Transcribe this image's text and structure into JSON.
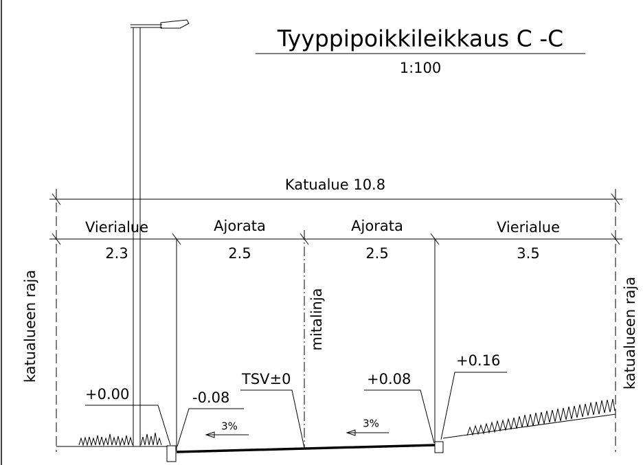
{
  "title": "Tyyppipoikkileikkaus C -C",
  "scale": "1:100",
  "total": "Katualue 10.8",
  "segments": [
    {
      "label": "Vierialue",
      "width": "2.3"
    },
    {
      "label": "Ajorata",
      "width": "2.5"
    },
    {
      "label": "Ajorata",
      "width": "2.5"
    },
    {
      "label": "Vierialue",
      "width": "3.5"
    }
  ],
  "boundary_left": "katualueen raja",
  "boundary_right": "katualueen raja",
  "centerline": "mitalinja",
  "elevations": [
    "+0.00",
    "-0.08",
    "TSV±0",
    "+0.08",
    "+0.16"
  ],
  "slopes": [
    "3%",
    "3%"
  ]
}
